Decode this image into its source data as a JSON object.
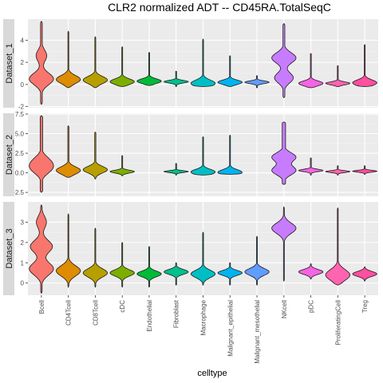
{
  "chart_data": {
    "type": "violin",
    "title": "CLR2 normalized ADT -- CD45RA.TotalSeqC",
    "xlabel": "celltype",
    "categories": [
      "Bcell",
      "CD4Tcell",
      "CD8Tcell",
      "cDC",
      "Endothelial",
      "Fibroblast",
      "Macrophage",
      "Malignant_epithelial",
      "Malignant_mesothelial",
      "NKcell",
      "pDC",
      "ProliferatingCell",
      "Treg"
    ],
    "colors": [
      "#F8766D",
      "#DE8C00",
      "#B79F00",
      "#7CAE00",
      "#00BA38",
      "#00C08B",
      "#00BFC4",
      "#00B4F0",
      "#619CFF",
      "#C77CFF",
      "#F564E3",
      "#FF64B0",
      "#FF4FA0"
    ],
    "grid": true,
    "panels": [
      {
        "label": "Dataset_1",
        "ylim": [
          -2.1,
          5.9
        ],
        "yticks": [
          -2,
          0,
          2,
          4
        ],
        "violins": [
          {
            "category": "Bcell",
            "min": -1.8,
            "max": 5.7,
            "peaks": [
              [
                0.5,
                0.5
              ],
              [
                2.6,
                0.22
              ]
            ]
          },
          {
            "category": "CD4Tcell",
            "min": -0.3,
            "max": 4.8,
            "peaks": [
              [
                0.45,
                1.0
              ]
            ]
          },
          {
            "category": "CD8Tcell",
            "min": -0.3,
            "max": 4.3,
            "peaks": [
              [
                0.4,
                0.95
              ]
            ]
          },
          {
            "category": "cDC",
            "min": -0.2,
            "max": 3.4,
            "peaks": [
              [
                0.25,
                1.0
              ]
            ]
          },
          {
            "category": "Endothelial",
            "min": -0.1,
            "max": 2.9,
            "peaks": [
              [
                0.3,
                1.0
              ]
            ]
          },
          {
            "category": "Fibroblast",
            "min": -0.2,
            "max": 1.2,
            "peaks": [
              [
                0.25,
                1.0
              ]
            ]
          },
          {
            "category": "Macrophage",
            "min": -0.2,
            "max": 4.1,
            "peaks": [
              [
                0.1,
                1.0
              ]
            ]
          },
          {
            "category": "Malignant_epithelial",
            "min": -0.2,
            "max": 2.6,
            "peaks": [
              [
                0.2,
                1.0
              ]
            ]
          },
          {
            "category": "Malignant_mesothelial",
            "min": -0.3,
            "max": 0.8,
            "peaks": [
              [
                0.2,
                1.0
              ]
            ]
          },
          {
            "category": "NKcell",
            "min": -1.2,
            "max": 5.5,
            "peaks": [
              [
                0.6,
                0.35
              ],
              [
                2.4,
                0.45
              ]
            ]
          },
          {
            "category": "pDC",
            "min": -0.3,
            "max": 2.8,
            "peaks": [
              [
                0.1,
                1.0
              ]
            ]
          },
          {
            "category": "ProliferatingCell",
            "min": -0.2,
            "max": 1.7,
            "peaks": [
              [
                0.1,
                1.0
              ]
            ]
          },
          {
            "category": "Treg",
            "min": -0.2,
            "max": 3.6,
            "peaks": [
              [
                0.15,
                1.0
              ]
            ]
          }
        ]
      },
      {
        "label": "Dataset_2",
        "ylim": [
          -3.0,
          7.6
        ],
        "yticks": [
          -2.5,
          0.0,
          2.5,
          5.0,
          7.5
        ],
        "ytick_labels": [
          "-2.5",
          "0.0",
          "2.5",
          "5.0",
          "7.5"
        ],
        "violins": [
          {
            "category": "Bcell",
            "min": -2.5,
            "max": 7.3,
            "peaks": [
              [
                0.5,
                0.25
              ],
              [
                1.5,
                0.2
              ]
            ]
          },
          {
            "category": "CD4Tcell",
            "min": -0.6,
            "max": 6.0,
            "peaks": [
              [
                0.3,
                0.8
              ]
            ]
          },
          {
            "category": "CD8Tcell",
            "min": -0.8,
            "max": 5.2,
            "peaks": [
              [
                0.4,
                0.75
              ]
            ]
          },
          {
            "category": "cDC",
            "min": -0.4,
            "max": 2.2,
            "peaks": [
              [
                0.15,
                1.0
              ]
            ]
          },
          {
            "category": "Fibroblast",
            "min": -0.3,
            "max": 1.2,
            "peaks": [
              [
                0.15,
                1.0
              ]
            ]
          },
          {
            "category": "Macrophage",
            "min": -0.3,
            "max": 4.6,
            "peaks": [
              [
                0.1,
                1.0
              ]
            ]
          },
          {
            "category": "Malignant_epithelial",
            "min": -0.2,
            "max": 4.8,
            "peaks": [
              [
                0.05,
                1.0
              ]
            ]
          },
          {
            "category": "NKcell",
            "min": -1.5,
            "max": 6.5,
            "peaks": [
              [
                0.3,
                0.25
              ],
              [
                2.0,
                0.25
              ]
            ]
          },
          {
            "category": "pDC",
            "min": -0.3,
            "max": 1.9,
            "peaks": [
              [
                0.3,
                0.9
              ]
            ]
          },
          {
            "category": "ProliferatingCell",
            "min": -0.3,
            "max": 0.9,
            "peaks": [
              [
                0.15,
                1.0
              ]
            ]
          },
          {
            "category": "Treg",
            "min": -0.2,
            "max": 0.9,
            "peaks": [
              [
                0.2,
                1.0
              ]
            ]
          }
        ]
      },
      {
        "label": "Dataset_3",
        "ylim": [
          -0.6,
          4.0
        ],
        "yticks": [
          0,
          1,
          2,
          3
        ],
        "violins": [
          {
            "category": "Bcell",
            "min": -0.5,
            "max": 3.85,
            "peaks": [
              [
                0.7,
                0.6
              ],
              [
                1.8,
                0.55
              ],
              [
                3.0,
                0.25
              ]
            ]
          },
          {
            "category": "CD4Tcell",
            "min": -0.2,
            "max": 3.4,
            "peaks": [
              [
                0.6,
                1.0
              ]
            ]
          },
          {
            "category": "CD8Tcell",
            "min": -0.2,
            "max": 2.7,
            "peaks": [
              [
                0.5,
                1.0
              ]
            ]
          },
          {
            "category": "cDC",
            "min": -0.2,
            "max": 2.0,
            "peaks": [
              [
                0.5,
                1.0
              ]
            ]
          },
          {
            "category": "Endothelial",
            "min": -0.2,
            "max": 1.8,
            "peaks": [
              [
                0.45,
                1.0
              ]
            ]
          },
          {
            "category": "Fibroblast",
            "min": -0.1,
            "max": 1.0,
            "peaks": [
              [
                0.55,
                1.0
              ]
            ]
          },
          {
            "category": "Macrophage",
            "min": -0.1,
            "max": 2.5,
            "peaks": [
              [
                0.45,
                1.0
              ]
            ]
          },
          {
            "category": "Malignant_epithelial",
            "min": -0.1,
            "max": 1.0,
            "peaks": [
              [
                0.5,
                1.0
              ]
            ]
          },
          {
            "category": "Malignant_mesothelial",
            "min": -0.1,
            "max": 2.3,
            "peaks": [
              [
                0.55,
                1.0
              ]
            ]
          },
          {
            "category": "NKcell",
            "min": 0.1,
            "max": 3.75,
            "peaks": [
              [
                2.7,
                1.0
              ]
            ]
          },
          {
            "category": "pDC",
            "min": 0.2,
            "max": 0.95,
            "peaks": [
              [
                0.55,
                1.0
              ]
            ]
          },
          {
            "category": "ProliferatingCell",
            "min": -0.1,
            "max": 3.7,
            "peaks": [
              [
                0.4,
                1.0
              ]
            ]
          },
          {
            "category": "Treg",
            "min": 0.1,
            "max": 0.8,
            "peaks": [
              [
                0.45,
                1.0
              ]
            ]
          }
        ]
      }
    ]
  }
}
